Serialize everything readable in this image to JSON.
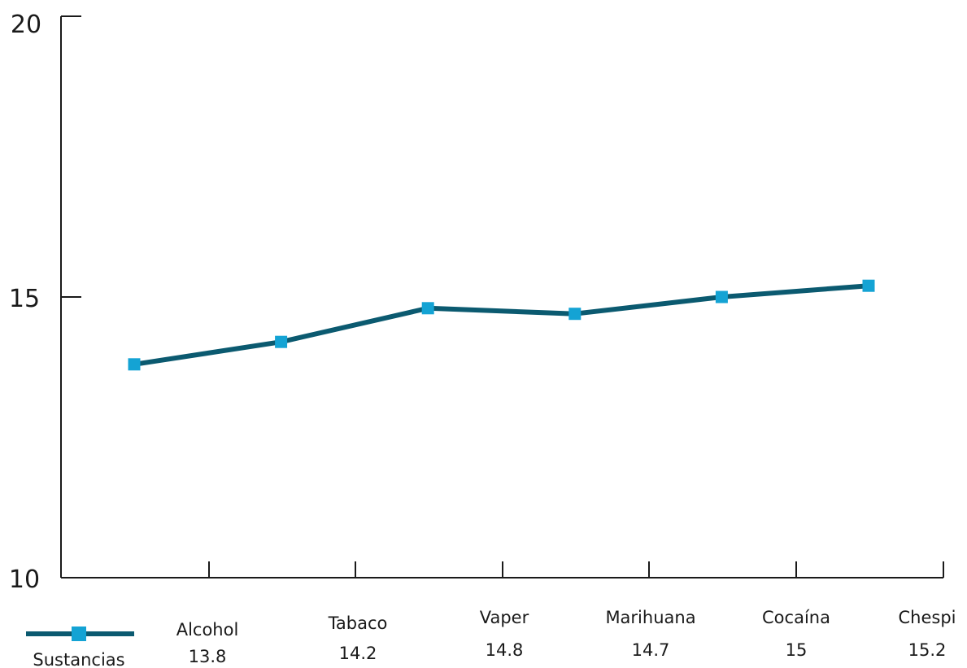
{
  "chart_data": {
    "type": "line",
    "categories": [
      "Alcohol",
      "Tabaco",
      "Vaper",
      "Marihuana",
      "Cocaína",
      "Chespi"
    ],
    "series": [
      {
        "name": "Sustancias",
        "values": [
          13.8,
          14.2,
          14.8,
          14.7,
          15,
          15.2
        ]
      }
    ],
    "value_labels": [
      "13.8",
      "14.2",
      "14.8",
      "14.7",
      "15",
      "15.2"
    ],
    "ylim": [
      10,
      20
    ],
    "yticks": [
      "10",
      "15",
      "20"
    ],
    "grid": false,
    "legend_position": "bottom-left",
    "colors": {
      "line": "#0b5a70",
      "marker": "#14a3d4",
      "axis": "#1a1a1a"
    }
  }
}
